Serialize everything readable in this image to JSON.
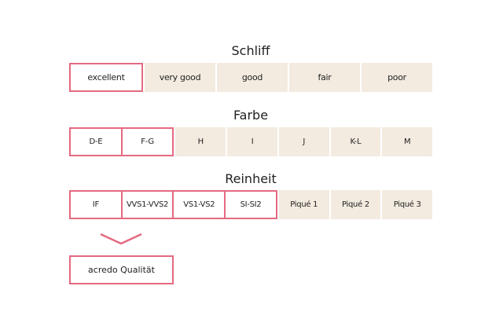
{
  "accent_color": "#e46a81",
  "cell_color": "#f3ebe0",
  "groups": [
    {
      "title": "Schliff",
      "options": [
        {
          "label": "excellent",
          "selected": true
        },
        {
          "label": "very good",
          "selected": false
        },
        {
          "label": "good",
          "selected": false
        },
        {
          "label": "fair",
          "selected": false
        },
        {
          "label": "poor",
          "selected": false
        }
      ]
    },
    {
      "title": "Farbe",
      "options": [
        {
          "label": "D-E",
          "selected": true
        },
        {
          "label": "F-G",
          "selected": true
        },
        {
          "label": "H",
          "selected": false
        },
        {
          "label": "I",
          "selected": false
        },
        {
          "label": "J",
          "selected": false
        },
        {
          "label": "K-L",
          "selected": false
        },
        {
          "label": "M",
          "selected": false
        }
      ]
    },
    {
      "title": "Reinheit",
      "options": [
        {
          "label": "IF",
          "selected": true
        },
        {
          "label": "VVS1-VVS2",
          "selected": true
        },
        {
          "label": "VS1-VS2",
          "selected": true
        },
        {
          "label": "SI-SI2",
          "selected": true
        },
        {
          "label": "Piqué 1",
          "selected": false
        },
        {
          "label": "Piqué 2",
          "selected": false
        },
        {
          "label": "Piqué 3",
          "selected": false
        }
      ]
    }
  ],
  "result": {
    "label": "acredo Qualität",
    "arrow_icon": "chevron-down-icon"
  }
}
